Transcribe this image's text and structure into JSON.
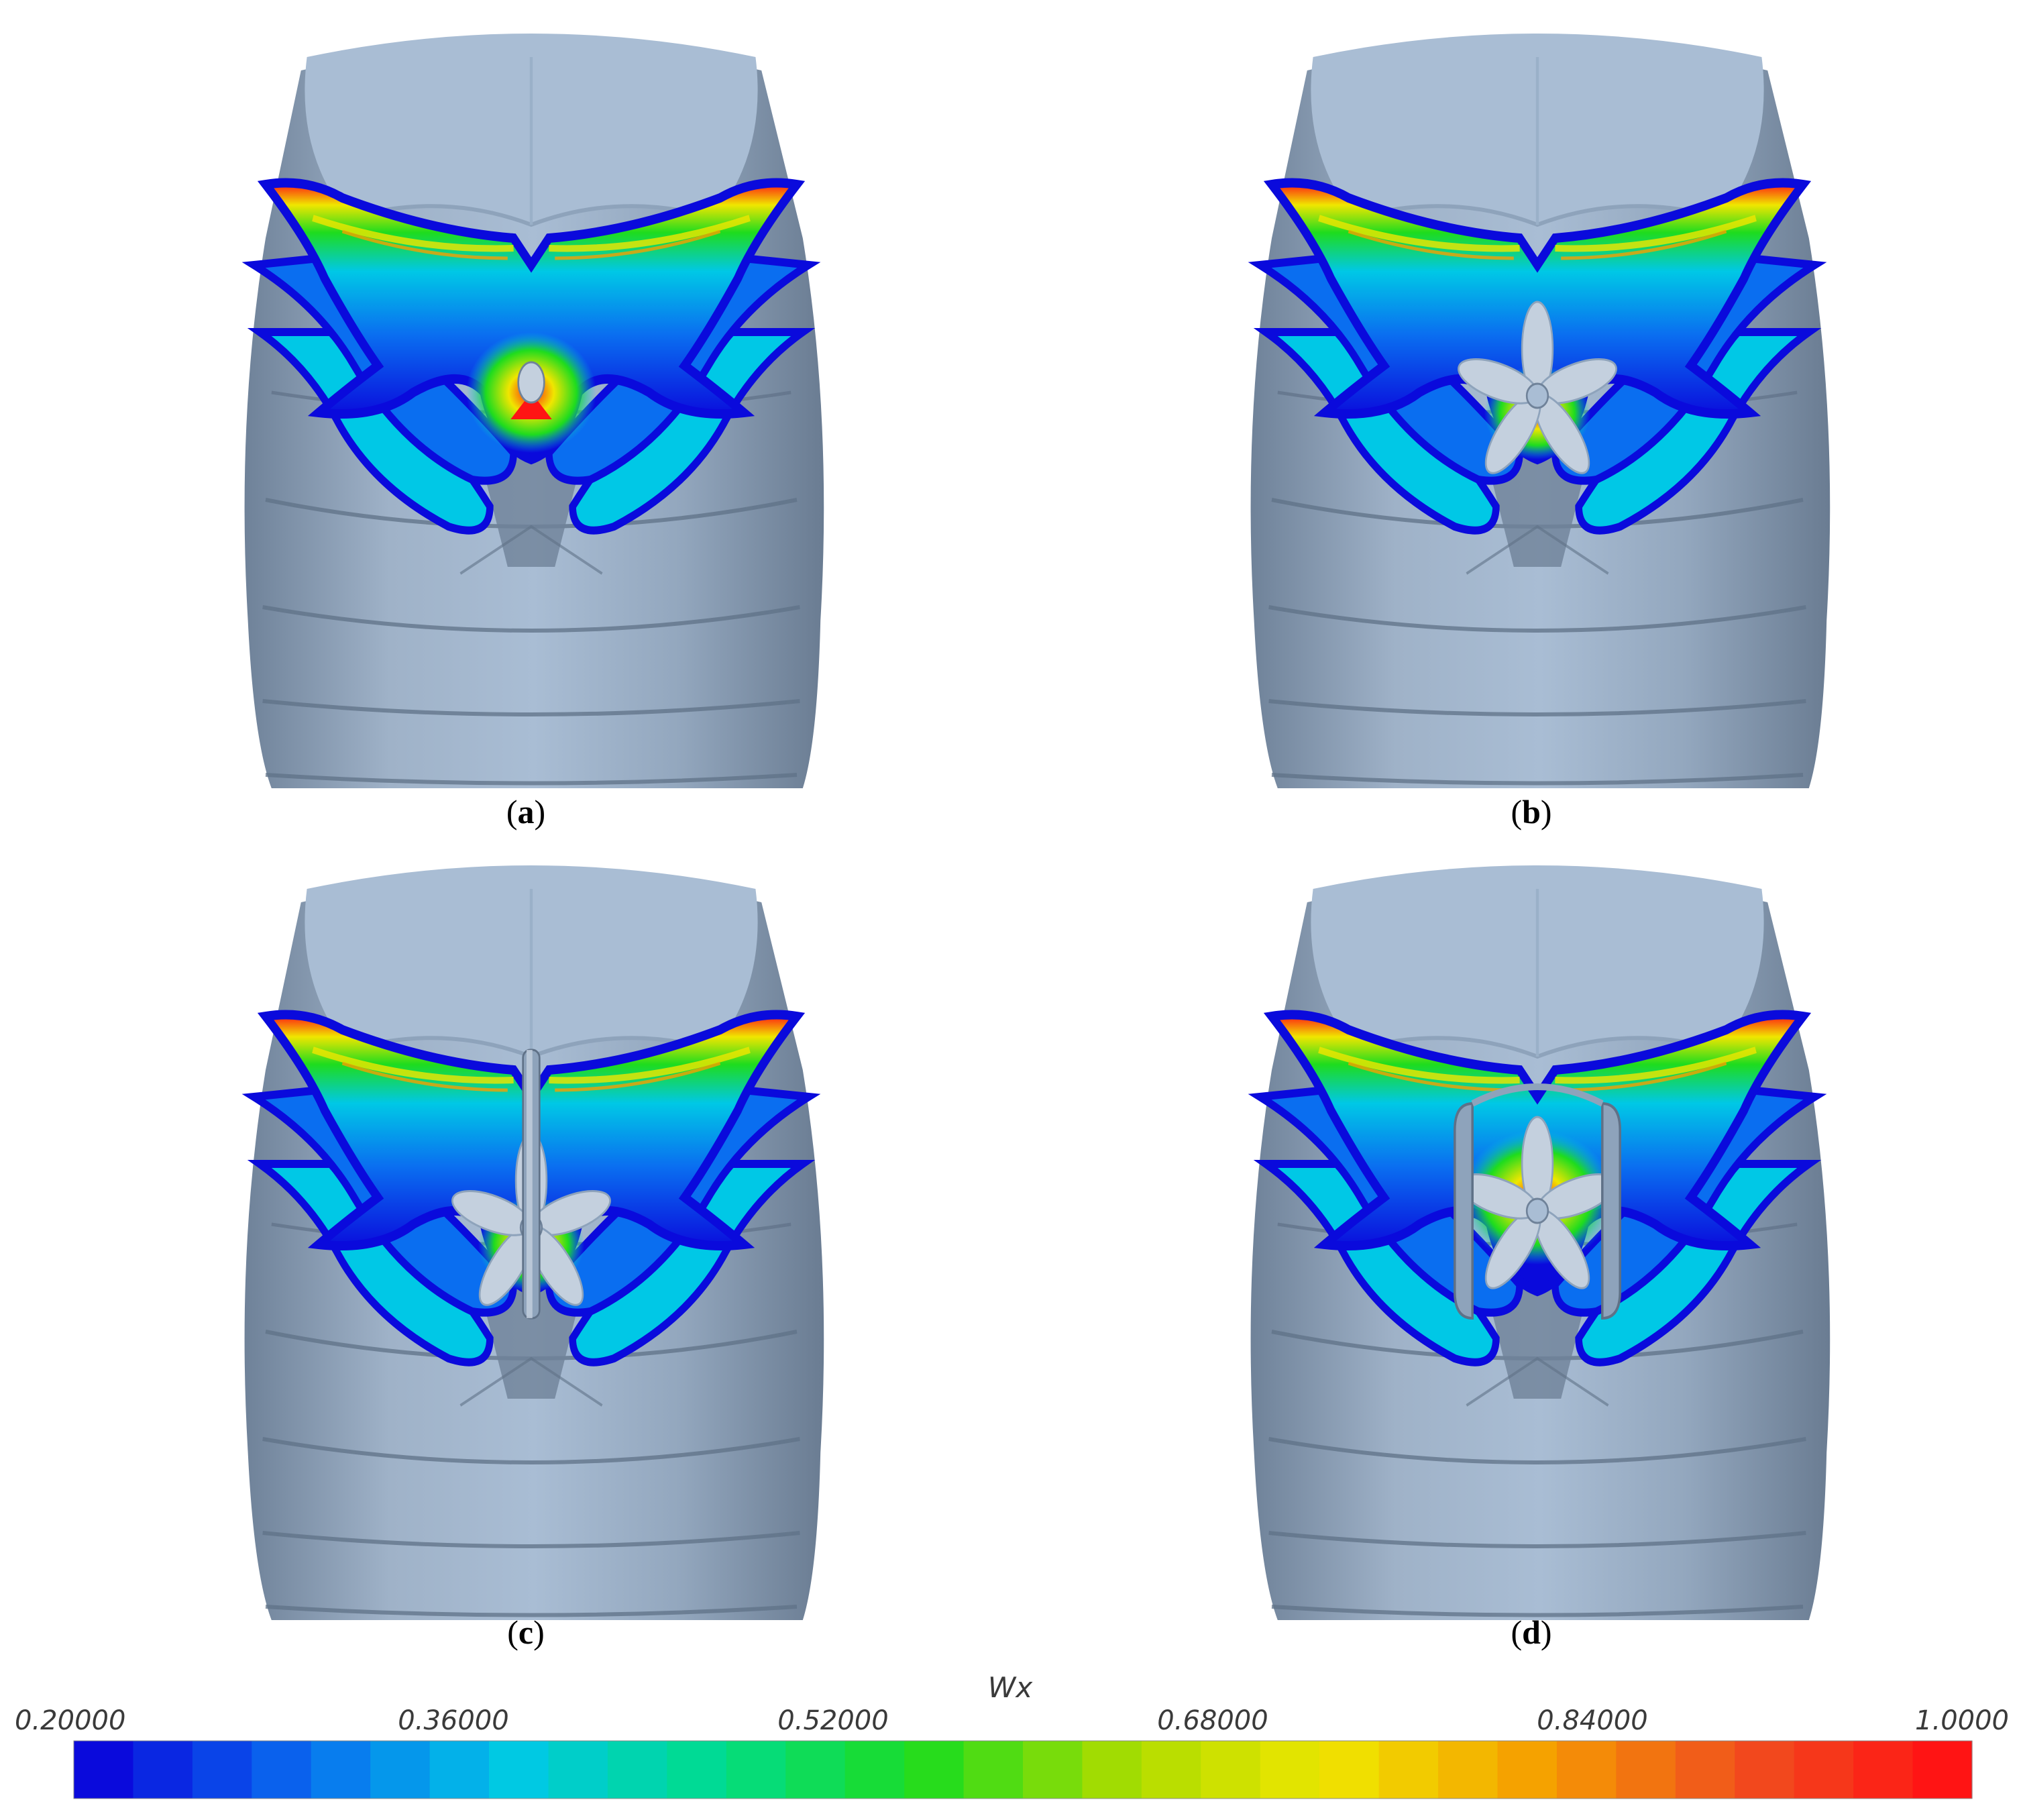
{
  "panels": [
    {
      "id": "a",
      "caption_open": "(",
      "caption_letter": "a",
      "caption_close": ")",
      "appendage": "none"
    },
    {
      "id": "b",
      "caption_open": "(",
      "caption_letter": "b",
      "caption_close": ")",
      "appendage": "propeller"
    },
    {
      "id": "c",
      "caption_open": "(",
      "caption_letter": "c",
      "caption_close": ")",
      "appendage": "propeller-rudder"
    },
    {
      "id": "d",
      "caption_open": "(",
      "caption_letter": "d",
      "caption_close": ")",
      "appendage": "propeller-duct"
    }
  ],
  "colorbar": {
    "title": "Wx",
    "min": 0.2,
    "max": 1.0,
    "tick_labels": [
      "0.20000",
      "0.36000",
      "0.52000",
      "0.68000",
      "0.84000",
      "1.0000"
    ],
    "segments": 32,
    "colors": [
      "#0a0adc",
      "#0a6ef0",
      "#00c8e6",
      "#00dc8c",
      "#1edc1e",
      "#aadc00",
      "#f0e600",
      "#f5a000",
      "#f0501e",
      "#ff1414"
    ]
  },
  "colors": {
    "hull_light": "#a9bdd4",
    "hull_mid": "#8ea3bb",
    "hull_dark": "#5f7187",
    "appendage": "#c4d0de"
  }
}
